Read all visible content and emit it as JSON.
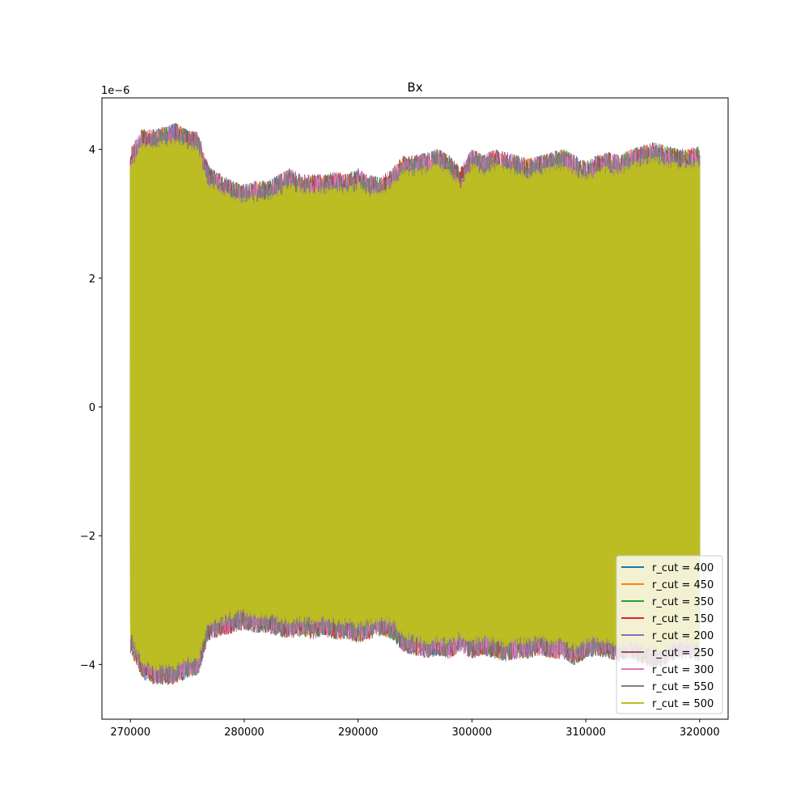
{
  "chart_data": {
    "type": "line",
    "title": "Bx",
    "xlabel": "",
    "ylabel": "",
    "offset_label": "1e−6",
    "scale_factor": 1e-06,
    "xlim": [
      267500,
      322500
    ],
    "ylim": [
      -4.85,
      4.8
    ],
    "x_ticks": [
      270000,
      280000,
      290000,
      300000,
      310000,
      320000
    ],
    "x_tick_labels": [
      "270000",
      "280000",
      "290000",
      "300000",
      "310000",
      "320000"
    ],
    "y_ticks": [
      4,
      2,
      0,
      -2,
      -4
    ],
    "y_tick_labels": [
      "4",
      "2",
      "0",
      "−2",
      "−4"
    ],
    "grid": false,
    "legend_position": "lower right",
    "x_range": [
      270000,
      320000
    ],
    "series": [
      {
        "name": "r_cut = 400",
        "color": "#1f77b4"
      },
      {
        "name": "r_cut = 450",
        "color": "#ff7f0e"
      },
      {
        "name": "r_cut = 350",
        "color": "#2ca02c"
      },
      {
        "name": "r_cut = 150",
        "color": "#d62728"
      },
      {
        "name": "r_cut = 200",
        "color": "#9467bd"
      },
      {
        "name": "r_cut = 250",
        "color": "#8c564b"
      },
      {
        "name": "r_cut = 300",
        "color": "#e377c2"
      },
      {
        "name": "r_cut = 550",
        "color": "#7f7f7f"
      },
      {
        "name": "r_cut = 500",
        "color": "#bcbd22"
      }
    ],
    "envelope": {
      "x": [
        270000,
        271000,
        272000,
        273000,
        274000,
        275000,
        276000,
        276500,
        277000,
        278000,
        279000,
        280000,
        281000,
        282000,
        283000,
        284000,
        285000,
        286000,
        287000,
        288000,
        289000,
        290000,
        291000,
        292000,
        293000,
        294000,
        295000,
        296000,
        297000,
        298000,
        299000,
        300000,
        301000,
        302000,
        303000,
        304000,
        305000,
        306000,
        307000,
        308000,
        309000,
        310000,
        311000,
        312000,
        313000,
        314000,
        315000,
        316000,
        317000,
        318000,
        319000,
        320000
      ],
      "upper": [
        3.7,
        4.0,
        4.0,
        4.05,
        4.1,
        4.0,
        3.95,
        3.6,
        3.4,
        3.3,
        3.2,
        3.15,
        3.2,
        3.2,
        3.3,
        3.4,
        3.3,
        3.3,
        3.3,
        3.35,
        3.3,
        3.4,
        3.3,
        3.25,
        3.4,
        3.6,
        3.6,
        3.65,
        3.7,
        3.6,
        3.4,
        3.7,
        3.6,
        3.7,
        3.65,
        3.6,
        3.55,
        3.6,
        3.65,
        3.7,
        3.6,
        3.5,
        3.6,
        3.65,
        3.6,
        3.7,
        3.75,
        3.8,
        3.75,
        3.7,
        3.7,
        3.75
      ],
      "lower": [
        -3.5,
        -3.9,
        -4.0,
        -4.0,
        -4.0,
        -3.9,
        -3.85,
        -3.5,
        -3.3,
        -3.25,
        -3.2,
        -3.15,
        -3.2,
        -3.2,
        -3.25,
        -3.3,
        -3.25,
        -3.3,
        -3.25,
        -3.3,
        -3.3,
        -3.35,
        -3.3,
        -3.25,
        -3.3,
        -3.5,
        -3.55,
        -3.6,
        -3.55,
        -3.6,
        -3.5,
        -3.6,
        -3.55,
        -3.6,
        -3.65,
        -3.6,
        -3.6,
        -3.55,
        -3.6,
        -3.6,
        -3.7,
        -3.6,
        -3.55,
        -3.6,
        -3.65,
        -3.6,
        -3.7,
        -3.75,
        -3.7,
        -3.6,
        -3.6,
        -3.65
      ]
    }
  }
}
